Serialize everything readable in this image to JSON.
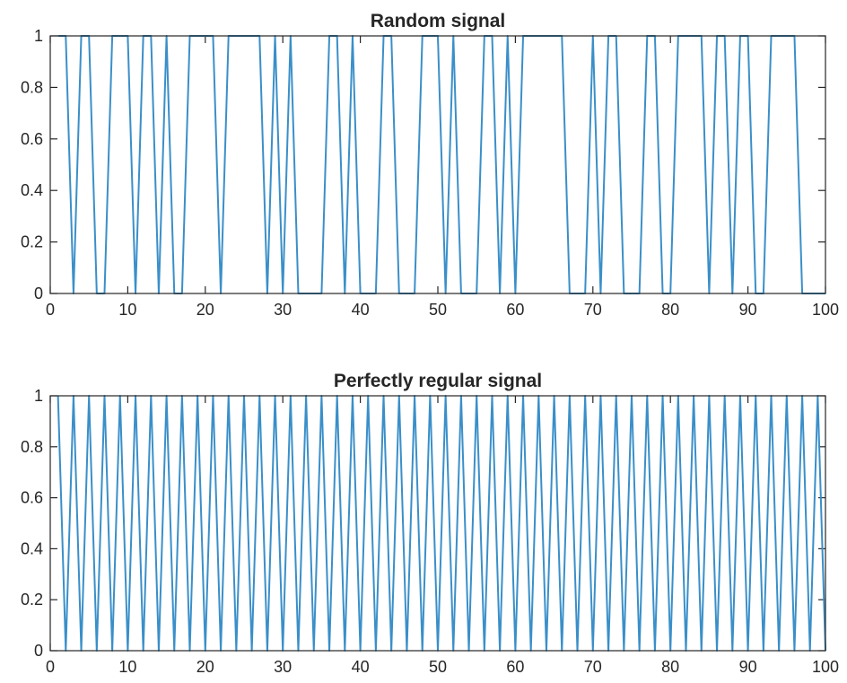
{
  "chart_data": [
    {
      "type": "line",
      "title": "Random signal",
      "xlabel": "",
      "ylabel": "",
      "xlim": [
        0,
        100
      ],
      "ylim": [
        0,
        1
      ],
      "xticks": [
        0,
        10,
        20,
        30,
        40,
        50,
        60,
        70,
        80,
        90,
        100
      ],
      "xtick_labels": [
        "0",
        "10",
        "20",
        "30",
        "40",
        "50",
        "60",
        "70",
        "80",
        "90",
        "100"
      ],
      "yticks": [
        0,
        0.2,
        0.4,
        0.6,
        0.8,
        1
      ],
      "ytick_labels": [
        "0",
        "0.2",
        "0.4",
        "0.6",
        "0.8",
        "1"
      ],
      "grid": false,
      "color": "#3a8fc9",
      "series": [
        {
          "x": [
            1,
            2,
            3,
            4,
            5,
            6,
            7,
            8,
            9,
            10,
            11,
            12,
            13,
            14,
            15,
            16,
            17,
            18,
            19,
            20,
            21,
            22,
            23,
            24,
            25,
            26,
            27,
            28,
            29,
            30,
            31,
            32,
            33,
            34,
            35,
            36,
            37,
            38,
            39,
            40,
            41,
            42,
            43,
            44,
            45,
            46,
            47,
            48,
            49,
            50,
            51,
            52,
            53,
            54,
            55,
            56,
            57,
            58,
            59,
            60,
            61,
            62,
            63,
            64,
            65,
            66,
            67,
            68,
            69,
            70,
            71,
            72,
            73,
            74,
            75,
            76,
            77,
            78,
            79,
            80,
            81,
            82,
            83,
            84,
            85,
            86,
            87,
            88,
            89,
            90,
            91,
            92,
            93,
            94,
            95,
            96,
            97,
            98,
            99,
            100
          ],
          "values": [
            1,
            1,
            0,
            1,
            1,
            0,
            0,
            1,
            1,
            1,
            0,
            1,
            1,
            0,
            1,
            0,
            0,
            1,
            1,
            1,
            1,
            0,
            1,
            1,
            1,
            1,
            1,
            0,
            1,
            0,
            1,
            0,
            0,
            0,
            0,
            1,
            1,
            0,
            1,
            0,
            0,
            0,
            1,
            1,
            0,
            0,
            0,
            1,
            1,
            1,
            0,
            1,
            0,
            0,
            0,
            1,
            1,
            0,
            1,
            0,
            1,
            1,
            1,
            1,
            1,
            1,
            0,
            0,
            0,
            1,
            0,
            1,
            1,
            0,
            0,
            0,
            1,
            1,
            0,
            0,
            1,
            1,
            1,
            1,
            0,
            1,
            1,
            0,
            1,
            1,
            0,
            0,
            1,
            1,
            1,
            1,
            0,
            0,
            0,
            0
          ]
        }
      ]
    },
    {
      "type": "line",
      "title": "Perfectly regular signal",
      "xlabel": "",
      "ylabel": "",
      "xlim": [
        0,
        100
      ],
      "ylim": [
        0,
        1
      ],
      "xticks": [
        0,
        10,
        20,
        30,
        40,
        50,
        60,
        70,
        80,
        90,
        100
      ],
      "xtick_labels": [
        "0",
        "10",
        "20",
        "30",
        "40",
        "50",
        "60",
        "70",
        "80",
        "90",
        "100"
      ],
      "yticks": [
        0,
        0.2,
        0.4,
        0.6,
        0.8,
        1
      ],
      "ytick_labels": [
        "0",
        "0.2",
        "0.4",
        "0.6",
        "0.8",
        "1"
      ],
      "grid": false,
      "color": "#3a8fc9",
      "series": [
        {
          "x": [
            1,
            2,
            3,
            4,
            5,
            6,
            7,
            8,
            9,
            10,
            11,
            12,
            13,
            14,
            15,
            16,
            17,
            18,
            19,
            20,
            21,
            22,
            23,
            24,
            25,
            26,
            27,
            28,
            29,
            30,
            31,
            32,
            33,
            34,
            35,
            36,
            37,
            38,
            39,
            40,
            41,
            42,
            43,
            44,
            45,
            46,
            47,
            48,
            49,
            50,
            51,
            52,
            53,
            54,
            55,
            56,
            57,
            58,
            59,
            60,
            61,
            62,
            63,
            64,
            65,
            66,
            67,
            68,
            69,
            70,
            71,
            72,
            73,
            74,
            75,
            76,
            77,
            78,
            79,
            80,
            81,
            82,
            83,
            84,
            85,
            86,
            87,
            88,
            89,
            90,
            91,
            92,
            93,
            94,
            95,
            96,
            97,
            98,
            99,
            100
          ],
          "values": [
            1,
            0,
            1,
            0,
            1,
            0,
            1,
            0,
            1,
            0,
            1,
            0,
            1,
            0,
            1,
            0,
            1,
            0,
            1,
            0,
            1,
            0,
            1,
            0,
            1,
            0,
            1,
            0,
            1,
            0,
            1,
            0,
            1,
            0,
            1,
            0,
            1,
            0,
            1,
            0,
            1,
            0,
            1,
            0,
            1,
            0,
            1,
            0,
            1,
            0,
            1,
            0,
            1,
            0,
            1,
            0,
            1,
            0,
            1,
            0,
            1,
            0,
            1,
            0,
            1,
            0,
            1,
            0,
            1,
            0,
            1,
            0,
            1,
            0,
            1,
            0,
            1,
            0,
            1,
            0,
            1,
            0,
            1,
            0,
            1,
            0,
            1,
            0,
            1,
            0,
            1,
            0,
            1,
            0,
            1,
            0,
            1,
            0,
            1,
            0
          ]
        }
      ]
    }
  ]
}
